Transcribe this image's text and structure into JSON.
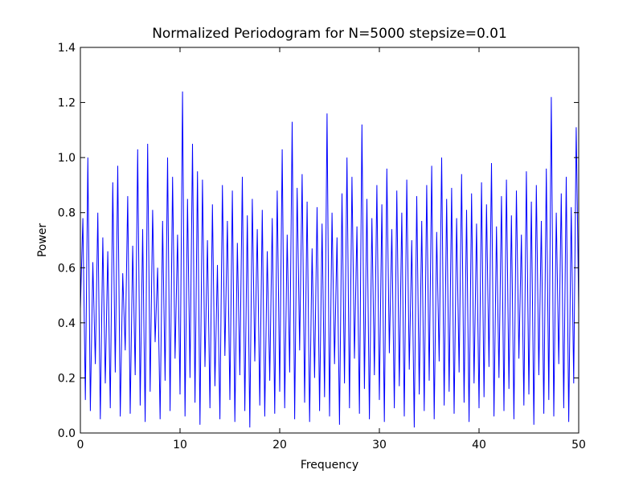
{
  "chart_data": {
    "type": "line",
    "title": "Normalized Periodogram for N=5000 stepsize=0.01",
    "x_label": "Frequency",
    "y_label": "Power",
    "xlim": [
      0,
      50
    ],
    "xticks": [
      0,
      10,
      20,
      30,
      40,
      50
    ],
    "ylim": [
      0,
      1.4
    ],
    "yticks": [
      {
        "value": 0,
        "label": "0.0"
      },
      0.2,
      0.4,
      0.6,
      0.8,
      {
        "value": 1,
        "label": "1.0"
      },
      1.2,
      1.4
    ],
    "grid": false,
    "x": [
      0,
      0.25,
      0.5,
      0.75,
      1,
      1.25,
      1.5,
      1.75,
      2,
      2.25,
      2.5,
      2.75,
      3,
      3.25,
      3.5,
      3.75,
      4,
      4.25,
      4.5,
      4.75,
      5,
      5.25,
      5.5,
      5.75,
      6,
      6.25,
      6.5,
      6.75,
      7,
      7.25,
      7.5,
      7.75,
      8,
      8.25,
      8.5,
      8.75,
      9,
      9.25,
      9.5,
      9.75,
      10,
      10.25,
      10.5,
      10.75,
      11,
      11.25,
      11.5,
      11.75,
      12,
      12.25,
      12.5,
      12.75,
      13,
      13.25,
      13.5,
      13.75,
      14,
      14.25,
      14.5,
      14.75,
      15,
      15.25,
      15.5,
      15.75,
      16,
      16.25,
      16.5,
      16.75,
      17,
      17.25,
      17.5,
      17.75,
      18,
      18.25,
      18.5,
      18.75,
      19,
      19.25,
      19.5,
      19.75,
      20,
      20.25,
      20.5,
      20.75,
      21,
      21.25,
      21.5,
      21.75,
      22,
      22.25,
      22.5,
      22.75,
      23,
      23.25,
      23.5,
      23.75,
      24,
      24.25,
      24.5,
      24.75,
      25,
      25.25,
      25.5,
      25.75,
      26,
      26.25,
      26.5,
      26.75,
      27,
      27.25,
      27.5,
      27.75,
      28,
      28.25,
      28.5,
      28.75,
      29,
      29.25,
      29.5,
      29.75,
      30,
      30.25,
      30.5,
      30.75,
      31,
      31.25,
      31.5,
      31.75,
      32,
      32.25,
      32.5,
      32.75,
      33,
      33.25,
      33.5,
      33.75,
      34,
      34.25,
      34.5,
      34.75,
      35,
      35.25,
      35.5,
      35.75,
      36,
      36.25,
      36.5,
      36.75,
      37,
      37.25,
      37.5,
      37.75,
      38,
      38.25,
      38.5,
      38.75,
      39,
      39.25,
      39.5,
      39.75,
      40,
      40.25,
      40.5,
      40.75,
      41,
      41.25,
      41.5,
      41.75,
      42,
      42.25,
      42.5,
      42.75,
      43,
      43.25,
      43.5,
      43.75,
      44,
      44.25,
      44.5,
      44.75,
      45,
      45.25,
      45.5,
      45.75,
      46,
      46.25,
      46.5,
      46.75,
      47,
      47.25,
      47.5,
      47.75,
      48,
      48.25,
      48.5,
      48.75,
      49,
      49.25,
      49.5,
      49.75,
      50
    ],
    "series": [
      {
        "color": "#0000ff",
        "values": [
          0.45,
          0.78,
          0.12,
          1.0,
          0.08,
          0.62,
          0.25,
          0.8,
          0.05,
          0.71,
          0.18,
          0.66,
          0.09,
          0.91,
          0.22,
          0.97,
          0.06,
          0.58,
          0.3,
          0.86,
          0.07,
          0.68,
          0.21,
          1.03,
          0.1,
          0.74,
          0.04,
          1.05,
          0.15,
          0.81,
          0.33,
          0.6,
          0.05,
          0.77,
          0.19,
          1.0,
          0.08,
          0.93,
          0.27,
          0.72,
          0.14,
          1.24,
          0.06,
          0.85,
          0.2,
          1.05,
          0.11,
          0.95,
          0.03,
          0.92,
          0.24,
          0.7,
          0.09,
          0.83,
          0.17,
          0.61,
          0.05,
          0.9,
          0.28,
          0.77,
          0.12,
          0.88,
          0.04,
          0.69,
          0.21,
          0.93,
          0.08,
          0.79,
          0.02,
          0.85,
          0.26,
          0.74,
          0.1,
          0.81,
          0.06,
          0.66,
          0.19,
          0.78,
          0.07,
          0.88,
          0.15,
          1.03,
          0.09,
          0.72,
          0.22,
          1.13,
          0.05,
          0.89,
          0.3,
          0.94,
          0.11,
          0.84,
          0.04,
          0.67,
          0.2,
          0.82,
          0.08,
          0.76,
          0.13,
          1.16,
          0.06,
          0.8,
          0.25,
          0.71,
          0.03,
          0.87,
          0.18,
          1.0,
          0.09,
          0.93,
          0.27,
          0.75,
          0.07,
          1.12,
          0.16,
          0.85,
          0.05,
          0.78,
          0.21,
          0.9,
          0.12,
          0.83,
          0.04,
          0.96,
          0.29,
          0.74,
          0.09,
          0.88,
          0.17,
          0.8,
          0.06,
          0.92,
          0.23,
          0.7,
          0.02,
          0.86,
          0.14,
          0.77,
          0.08,
          0.9,
          0.19,
          0.97,
          0.05,
          0.73,
          0.26,
          1.0,
          0.1,
          0.85,
          0.15,
          0.89,
          0.07,
          0.78,
          0.22,
          0.94,
          0.11,
          0.81,
          0.04,
          0.87,
          0.18,
          0.76,
          0.09,
          0.91,
          0.13,
          0.83,
          0.24,
          0.98,
          0.06,
          0.75,
          0.2,
          0.86,
          0.08,
          0.92,
          0.16,
          0.79,
          0.05,
          0.88,
          0.27,
          0.72,
          0.1,
          0.95,
          0.14,
          0.84,
          0.03,
          0.9,
          0.21,
          0.77,
          0.07,
          0.96,
          0.12,
          1.22,
          0.06,
          0.8,
          0.25,
          0.87,
          0.09,
          0.93,
          0.04,
          0.82,
          0.18,
          1.11,
          0.45
        ]
      }
    ]
  }
}
